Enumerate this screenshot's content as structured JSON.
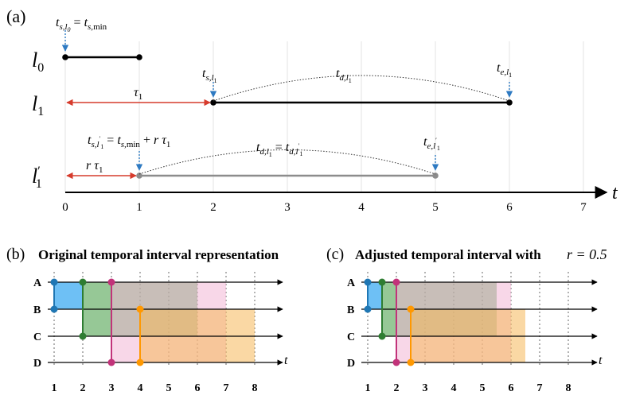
{
  "figure": {
    "panel_a": {
      "label": "(a)",
      "axis": {
        "variable": "t",
        "ticks": [
          "0",
          "1",
          "2",
          "3",
          "4",
          "5",
          "6",
          "7"
        ]
      },
      "rows": [
        {
          "id": "l0",
          "label": "l0",
          "start": 0,
          "end": 1,
          "color": "#000000"
        },
        {
          "id": "l1",
          "label": "l1",
          "start": 2,
          "end": 6,
          "color": "#000000"
        },
        {
          "id": "l1p",
          "label": "l1′",
          "start": 1,
          "end": 5,
          "color": "#8c8c8c"
        }
      ],
      "tau_labels": {
        "tau1": "τ1",
        "rtau1": "rτ1"
      },
      "annotations": {
        "ts_l0": "t s,l0 = t s,min",
        "ts_l1": "t s,l1",
        "te_l1": "t e,l1",
        "td_l1": "t d,l1",
        "ts_l1p": "t s,l1′ = t s,min + rτ1",
        "td_eq": "t d,l1 = t d,l1′",
        "te_l1p": "t e,l1′"
      },
      "colors": {
        "accent_red": "#d63b2c",
        "accent_blue": "#2e7ac2",
        "grid": "#e0e0e0"
      }
    },
    "panel_b": {
      "label": "(b)",
      "title": "Original temporal interval representation",
      "rows": [
        "A",
        "B",
        "C",
        "D"
      ],
      "axis_ticks": [
        "1",
        "2",
        "3",
        "4",
        "5",
        "6",
        "7",
        "8"
      ],
      "axis_variable": "t",
      "intervals": [
        {
          "name": "blue",
          "rows": [
            "A",
            "B"
          ],
          "start": 1,
          "end": 2,
          "color": "#55b5f3"
        },
        {
          "name": "green",
          "rows": [
            "A",
            "B",
            "C"
          ],
          "start": 2,
          "end": 6,
          "color": "#3f9a3f"
        },
        {
          "name": "pink",
          "rows": [
            "A",
            "B",
            "C",
            "D"
          ],
          "start": 3,
          "end": 7,
          "color": "#f2b6d5"
        },
        {
          "name": "orange",
          "rows": [
            "B",
            "C",
            "D"
          ],
          "start": 4,
          "end": 8,
          "color": "#f6b85a"
        }
      ]
    },
    "panel_c": {
      "label": "(c)",
      "title": "Adjusted temporal interval with",
      "r_text": "r = 0.5",
      "rows": [
        "A",
        "B",
        "C",
        "D"
      ],
      "axis_ticks": [
        "1",
        "2",
        "3",
        "4",
        "5",
        "6",
        "7",
        "8"
      ],
      "axis_variable": "t",
      "intervals": [
        {
          "name": "blue",
          "rows": [
            "A",
            "B"
          ],
          "start": 1,
          "end": 1.5,
          "color": "#55b5f3"
        },
        {
          "name": "green",
          "rows": [
            "A",
            "B",
            "C"
          ],
          "start": 1.5,
          "end": 5.5,
          "color": "#3f9a3f"
        },
        {
          "name": "pink",
          "rows": [
            "A",
            "B",
            "C",
            "D"
          ],
          "start": 2,
          "end": 6,
          "color": "#f2b6d5"
        },
        {
          "name": "orange",
          "rows": [
            "B",
            "C",
            "D"
          ],
          "start": 2.5,
          "end": 6.5,
          "color": "#f6b85a"
        }
      ]
    }
  }
}
